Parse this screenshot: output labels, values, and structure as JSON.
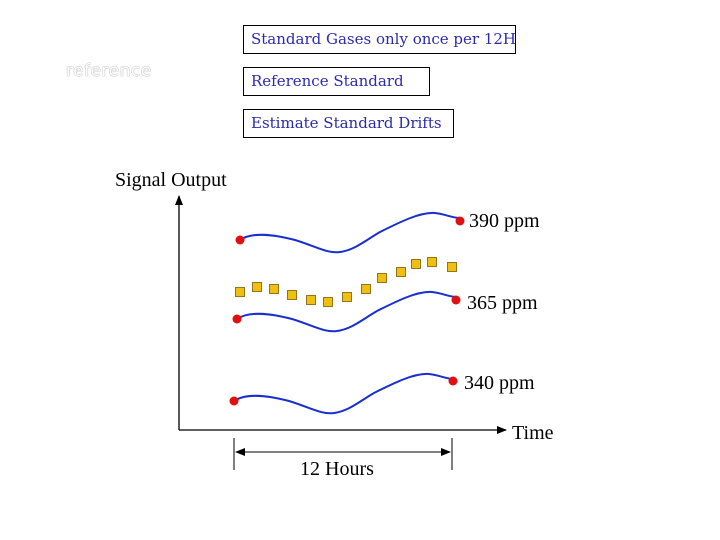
{
  "header_boxes": [
    {
      "label": "Standard Gases only once per 12H"
    },
    {
      "label": "Reference Standard"
    },
    {
      "label": "Estimate Standard Drifts"
    }
  ],
  "faint_label": "reference",
  "axes": {
    "y_label": "Signal Output",
    "x_label": "Time"
  },
  "curves": [
    {
      "label": "390 ppm"
    },
    {
      "label": "365 ppm"
    },
    {
      "label": "340 ppm"
    }
  ],
  "interval_label": "12 Hours",
  "colors": {
    "curve": "#1a2fd0",
    "endpoint": "#e01010",
    "square_fill": "#f0c010",
    "square_stroke": "#7a5a00",
    "box_text": "#2b2bb0"
  }
}
